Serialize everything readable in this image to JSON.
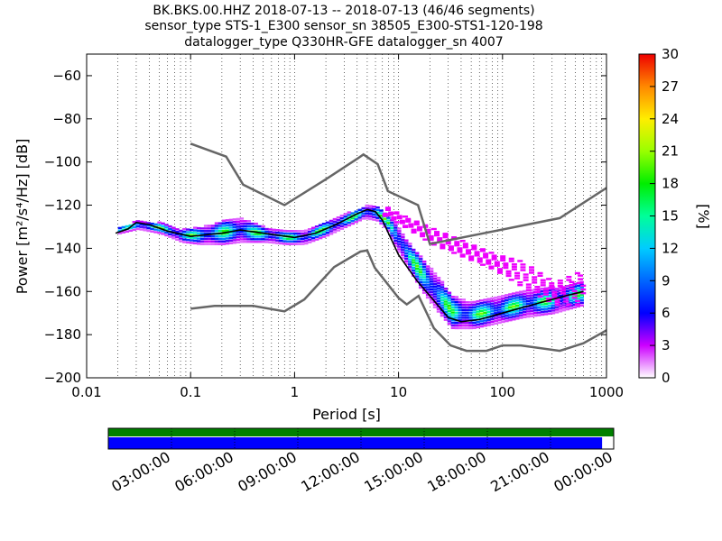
{
  "title_lines": [
    "BK.BKS.00.HHZ   2018-07-13 -- 2018-07-13  (46/46 segments)",
    "sensor_type STS-1_E300 sensor_sn 38505_E300-STS1-120-198",
    "datalogger_type Q330HR-GFE datalogger_sn 4007"
  ],
  "colors": {
    "noise_model": "#666666",
    "mean_curve": "#000000",
    "grid": "#000000"
  },
  "chart_data": {
    "type": "heatmap",
    "title": "BK.BKS.00.HHZ   2018-07-13 -- 2018-07-13  (46/46 segments)",
    "xlabel": "Period [s]",
    "ylabel": "Power [m²/s⁴/Hz] [dB]",
    "x_scale": "log",
    "xlim": [
      0.01,
      1000
    ],
    "ylim": [
      -200,
      -50
    ],
    "x_ticks": [
      {
        "value": 0.01,
        "label": "0.01"
      },
      {
        "value": 0.1,
        "label": "0.1"
      },
      {
        "value": 1,
        "label": "1"
      },
      {
        "value": 10,
        "label": "10"
      },
      {
        "value": 100,
        "label": "100"
      },
      {
        "value": 1000,
        "label": "1000"
      }
    ],
    "y_ticks": [
      {
        "value": -60,
        "label": "−60"
      },
      {
        "value": -80,
        "label": "−80"
      },
      {
        "value": -100,
        "label": "−100"
      },
      {
        "value": -120,
        "label": "−120"
      },
      {
        "value": -140,
        "label": "−140"
      },
      {
        "value": -160,
        "label": "−160"
      },
      {
        "value": -180,
        "label": "−180"
      },
      {
        "value": -200,
        "label": "−200"
      }
    ],
    "grid": "dotted vertical at log subdivisions",
    "series": [
      {
        "kind": "noise-model-high",
        "points": [
          [
            0.1,
            -91.5
          ],
          [
            0.22,
            -97.5
          ],
          [
            0.32,
            -110.5
          ],
          [
            0.8,
            -120
          ],
          [
            2.0,
            -108
          ],
          [
            4.0,
            -98.5
          ],
          [
            4.6,
            -96.5
          ],
          [
            6.3,
            -101
          ],
          [
            7.9,
            -113.5
          ],
          [
            15.4,
            -120
          ],
          [
            20,
            -138
          ],
          [
            354.8,
            -126
          ],
          [
            1000,
            -112
          ]
        ]
      },
      {
        "kind": "noise-model-low",
        "points": [
          [
            0.1,
            -168
          ],
          [
            0.17,
            -166.7
          ],
          [
            0.4,
            -166.7
          ],
          [
            0.8,
            -169.2
          ],
          [
            1.24,
            -163.7
          ],
          [
            2.4,
            -148.7
          ],
          [
            4.3,
            -141.5
          ],
          [
            5.0,
            -141
          ],
          [
            5.9,
            -149
          ],
          [
            10.0,
            -163
          ],
          [
            12.0,
            -166
          ],
          [
            15.6,
            -162
          ],
          [
            21.9,
            -177
          ],
          [
            31.6,
            -185
          ],
          [
            45,
            -187.5
          ],
          [
            70,
            -187.5
          ],
          [
            100,
            -185
          ],
          [
            150,
            -185
          ],
          [
            354.8,
            -187.5
          ],
          [
            600,
            -184
          ],
          [
            1000,
            -178
          ]
        ]
      },
      {
        "kind": "mean",
        "points": [
          [
            0.019,
            -133
          ],
          [
            0.025,
            -131
          ],
          [
            0.03,
            -128
          ],
          [
            0.04,
            -129
          ],
          [
            0.06,
            -132
          ],
          [
            0.1,
            -134.5
          ],
          [
            0.2,
            -133
          ],
          [
            0.3,
            -131.5
          ],
          [
            0.5,
            -133
          ],
          [
            1,
            -135
          ],
          [
            1.6,
            -133
          ],
          [
            2.5,
            -129
          ],
          [
            4,
            -124
          ],
          [
            5,
            -122
          ],
          [
            6,
            -123
          ],
          [
            7,
            -127
          ],
          [
            8,
            -133
          ],
          [
            10,
            -143
          ],
          [
            15,
            -155
          ],
          [
            20,
            -162
          ],
          [
            30,
            -172
          ],
          [
            40,
            -174
          ],
          [
            60,
            -173
          ],
          [
            100,
            -170
          ],
          [
            200,
            -166
          ],
          [
            400,
            -162
          ],
          [
            600,
            -160
          ]
        ]
      }
    ],
    "heatmap_bands": [
      {
        "points": [
          [
            0.02,
            -133,
            -130
          ],
          [
            0.03,
            -131,
            -127
          ],
          [
            0.05,
            -133,
            -128
          ],
          [
            0.08,
            -137,
            -131
          ],
          [
            0.12,
            -138,
            -130
          ],
          [
            0.2,
            -138,
            -127
          ],
          [
            0.3,
            -137,
            -126
          ],
          [
            0.5,
            -137,
            -130
          ],
          [
            0.8,
            -138,
            -132
          ],
          [
            1.2,
            -138,
            -132
          ],
          [
            2,
            -134,
            -127
          ],
          [
            3,
            -130,
            -124
          ],
          [
            4.5,
            -126,
            -120
          ],
          [
            6,
            -127,
            -120
          ],
          [
            7.5,
            -131,
            -124
          ],
          [
            9,
            -139,
            -128
          ],
          [
            12,
            -149,
            -137
          ],
          [
            16,
            -159,
            -144
          ],
          [
            22,
            -168,
            -152
          ],
          [
            32,
            -177,
            -162
          ],
          [
            50,
            -177,
            -165
          ],
          [
            80,
            -175,
            -163
          ],
          [
            150,
            -172,
            -160
          ],
          [
            300,
            -170,
            -158
          ],
          [
            600,
            -166,
            -155
          ]
        ]
      }
    ],
    "outlier_band": [
      [
        7,
        -125,
        -120
      ],
      [
        10,
        -129,
        -124
      ],
      [
        20,
        -138,
        -130
      ],
      [
        40,
        -144,
        -136
      ],
      [
        80,
        -150,
        -142
      ],
      [
        150,
        -158,
        -145
      ],
      [
        300,
        -166,
        -155
      ],
      [
        600,
        -166,
        -148
      ]
    ],
    "colorbar": {
      "label": "[%]",
      "range": [
        0,
        30
      ],
      "ticks": [
        {
          "value": 0,
          "label": "0"
        },
        {
          "value": 3,
          "label": "3"
        },
        {
          "value": 6,
          "label": "6"
        },
        {
          "value": 9,
          "label": "9"
        },
        {
          "value": 12,
          "label": "12"
        },
        {
          "value": 15,
          "label": "15"
        },
        {
          "value": 18,
          "label": "18"
        },
        {
          "value": 21,
          "label": "21"
        },
        {
          "value": 24,
          "label": "24"
        },
        {
          "value": 27,
          "label": "27"
        },
        {
          "value": 30,
          "label": "30"
        }
      ]
    }
  },
  "timeline": {
    "coverage_fraction": 0.977,
    "tick_labels": [
      "03:00:00",
      "06:00:00",
      "09:00:00",
      "12:00:00",
      "15:00:00",
      "18:00:00",
      "21:00:00",
      "00:00:00"
    ],
    "colors": {
      "top": "#008000",
      "bottom": "#0000ff"
    }
  }
}
